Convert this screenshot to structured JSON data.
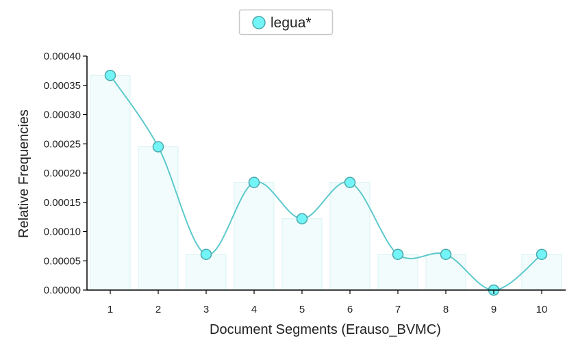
{
  "chart_data": {
    "type": "line",
    "xlabel": "Document Segments (Erauso_BVMC)",
    "ylabel": "Relative Frequencies",
    "ylim": [
      0,
      0.0004
    ],
    "yticks": [
      "0.00000",
      "0.00005",
      "0.00010",
      "0.00015",
      "0.00020",
      "0.00025",
      "0.00030",
      "0.00035",
      "0.00040"
    ],
    "x": [
      "1",
      "2",
      "3",
      "4",
      "5",
      "6",
      "7",
      "8",
      "9",
      "10"
    ],
    "series": [
      {
        "name": "legua*",
        "values": [
          0.000367,
          0.000245,
          6.1e-05,
          0.000184,
          0.000122,
          0.000184,
          6.1e-05,
          6.1e-05,
          0.0,
          6.1e-05
        ]
      }
    ],
    "legend": "top-center",
    "grid": false,
    "colors": {
      "line": "#5cc9cc",
      "marker_fill": "#73f4f7",
      "marker_stroke": "#4aa9ad",
      "bar_fill": "#f2fcfc",
      "bar_stroke": "#d8f2f3"
    }
  }
}
